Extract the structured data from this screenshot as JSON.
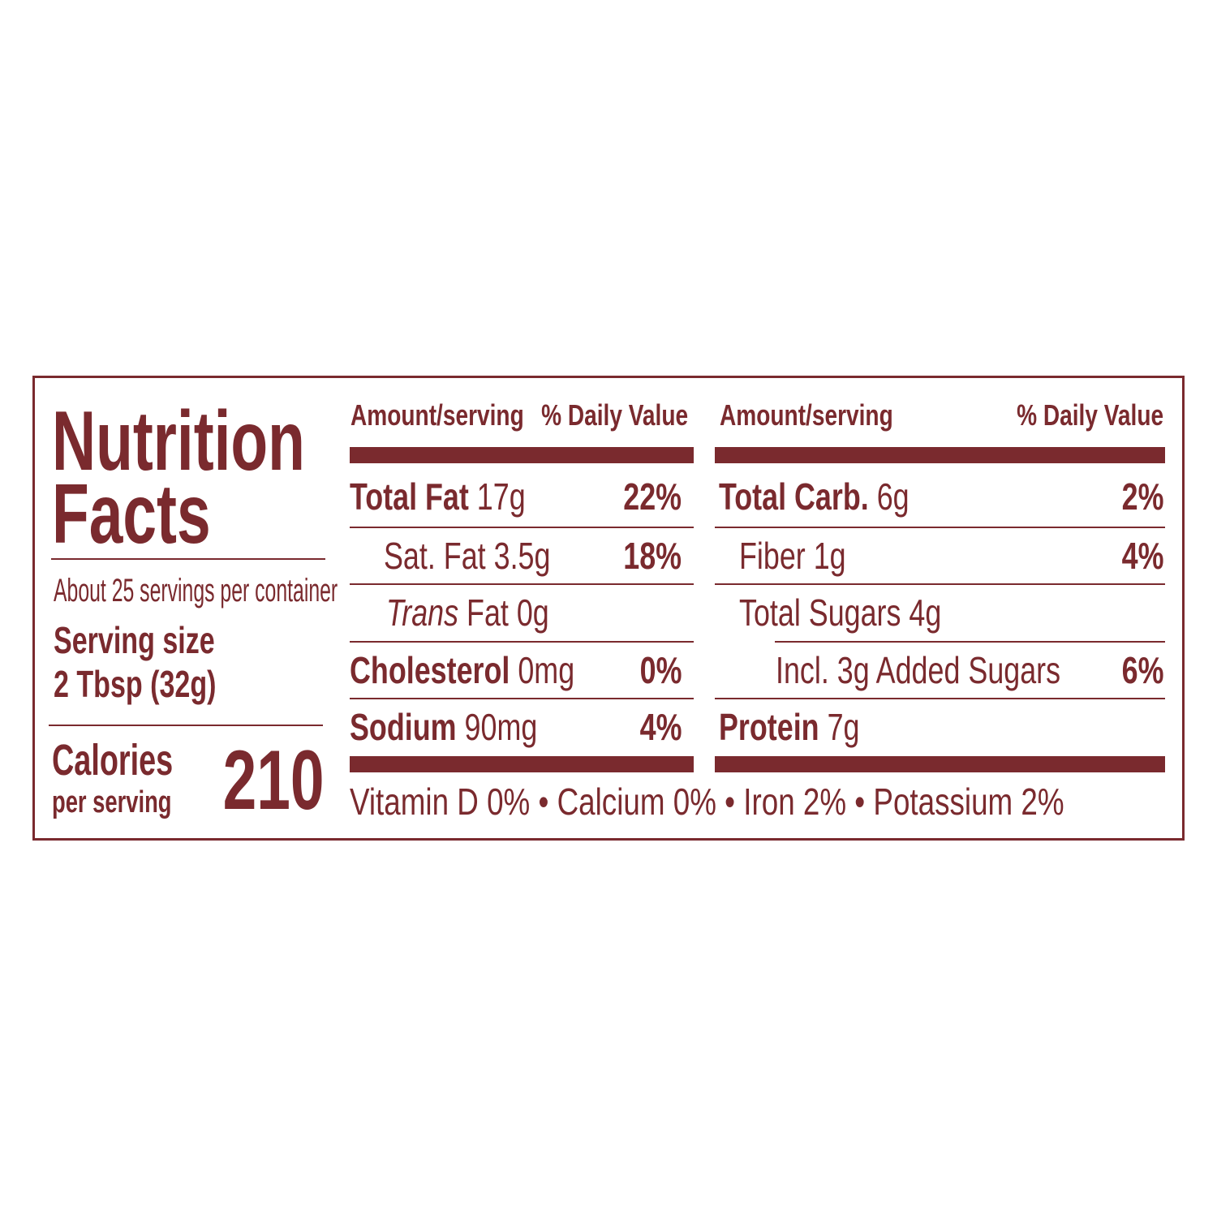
{
  "title_line1": "Nutrition",
  "title_line2": "Facts",
  "servings_per_container": "About 25 servings per container",
  "serving_size_label": "Serving size",
  "serving_size_value": "2 Tbsp (32g)",
  "calories_label": "Calories",
  "calories_sub": "per serving",
  "calories_value": "210",
  "headers": {
    "amount": "Amount/serving",
    "dv": "% Daily Value"
  },
  "left": [
    {
      "name": "Total Fat",
      "amount": "17g",
      "dv": "22%"
    },
    {
      "name": "Sat. Fat",
      "amount": "3.5g",
      "dv": "18%"
    },
    {
      "name": "Trans",
      "name_suffix": "Fat",
      "amount": "0g",
      "dv": ""
    },
    {
      "name": "Cholesterol",
      "amount": "0mg",
      "dv": "0%"
    },
    {
      "name": "Sodium",
      "amount": "90mg",
      "dv": "4%"
    }
  ],
  "right": [
    {
      "name": "Total Carb.",
      "amount": "6g",
      "dv": "2%"
    },
    {
      "name": "Fiber",
      "amount": "1g",
      "dv": "4%"
    },
    {
      "name": "Total Sugars",
      "amount": "4g",
      "dv": ""
    },
    {
      "name": "Incl. 3g Added Sugars",
      "amount": "",
      "dv": "6%"
    },
    {
      "name": "Protein",
      "amount": "7g",
      "dv": ""
    }
  ],
  "micronutrients": "Vitamin D 0% • Calcium 0% • Iron 2% • Potassium 2%",
  "colors": {
    "ink": "#7a2a2e",
    "background": "#ffffff"
  }
}
